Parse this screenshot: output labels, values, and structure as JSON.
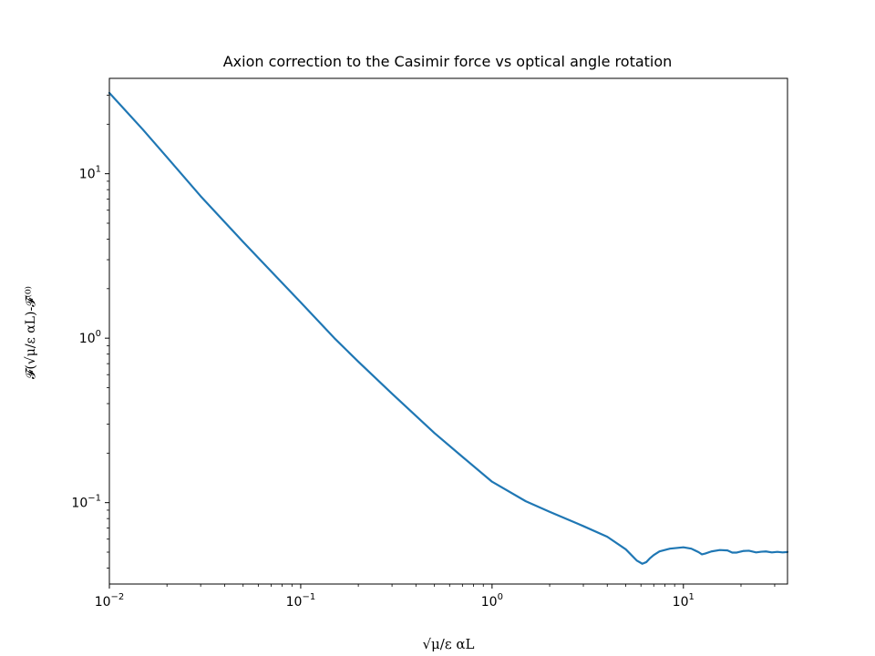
{
  "chart_data": {
    "type": "line",
    "title": "Axion correction to the Casimir force vs optical angle rotation",
    "xlabel": "√μ/ε αL",
    "ylabel": "𝓕(√μ/ε αL)-𝓕⁽⁰⁾",
    "xscale": "log",
    "yscale": "log",
    "xlim": [
      0.01,
      35
    ],
    "ylim": [
      0.032,
      38
    ],
    "grid": false,
    "x_ticks": [
      {
        "value": 0.01,
        "base": "10",
        "exp": "−2"
      },
      {
        "value": 0.1,
        "base": "10",
        "exp": "−1"
      },
      {
        "value": 1,
        "base": "10",
        "exp": "0"
      },
      {
        "value": 10,
        "base": "10",
        "exp": "1"
      }
    ],
    "y_ticks": [
      {
        "value": 0.1,
        "base": "10",
        "exp": "−1"
      },
      {
        "value": 1,
        "base": "10",
        "exp": "0"
      },
      {
        "value": 10,
        "base": "10",
        "exp": "1"
      }
    ],
    "series": [
      {
        "color": "#1f77b4",
        "x": [
          0.01,
          0.015,
          0.02,
          0.03,
          0.05,
          0.07,
          0.1,
          0.15,
          0.2,
          0.3,
          0.5,
          0.7,
          1.0,
          1.5,
          2.0,
          3.0,
          4.0,
          5.0,
          5.7,
          6.1,
          6.4,
          6.7,
          7.0,
          7.5,
          8.5,
          10.0,
          11.0,
          12.0,
          12.5,
          13.0,
          14.0,
          15.5,
          17.0,
          18.0,
          19.0,
          20.5,
          22.0,
          24.0,
          25.5,
          27.0,
          29.0,
          31.0,
          33.0,
          35.0
        ],
        "y": [
          31,
          18.5,
          12.6,
          7.3,
          3.85,
          2.55,
          1.65,
          1.0,
          0.72,
          0.46,
          0.265,
          0.19,
          0.134,
          0.102,
          0.088,
          0.072,
          0.062,
          0.052,
          0.0445,
          0.0425,
          0.0435,
          0.046,
          0.048,
          0.0505,
          0.0525,
          0.0535,
          0.0525,
          0.05,
          0.0485,
          0.049,
          0.0505,
          0.0515,
          0.0512,
          0.0497,
          0.0497,
          0.0508,
          0.051,
          0.0498,
          0.0503,
          0.0505,
          0.0498,
          0.0502,
          0.0498,
          0.0501
        ]
      }
    ]
  }
}
